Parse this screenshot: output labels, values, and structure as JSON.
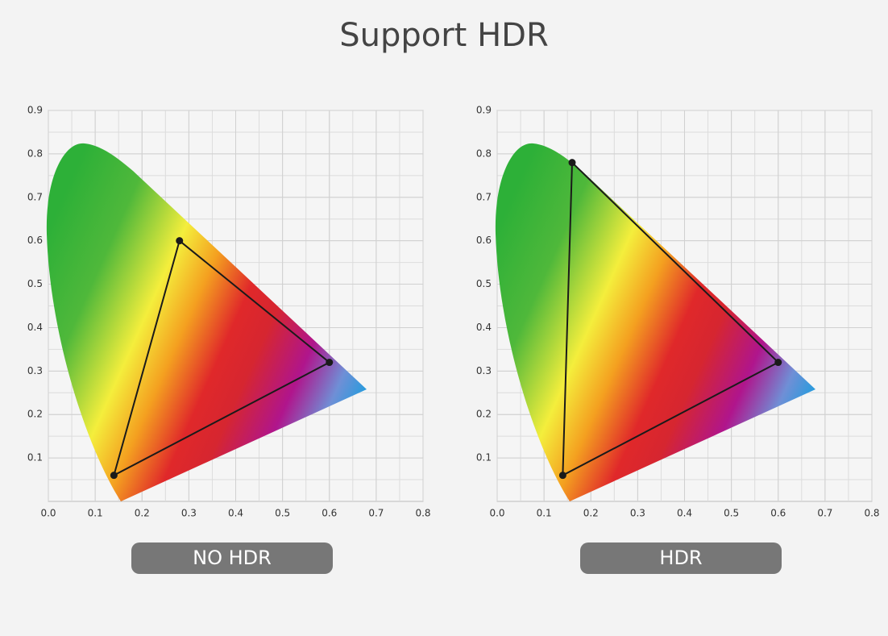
{
  "title": "Support HDR",
  "chart_data": [
    {
      "type": "polygon",
      "label": "NO HDR",
      "x": [
        0.28,
        0.6,
        0.14
      ],
      "values": [
        0.6,
        0.32,
        0.06
      ],
      "color": "#1a1a1a",
      "xlim": [
        0,
        0.8
      ],
      "ylim": [
        0,
        0.9
      ],
      "xticks": [
        {
          "value": 0,
          "label": "0.0"
        },
        0.1,
        0.2,
        0.3,
        0.4,
        0.5,
        0.6,
        0.7,
        0.8
      ],
      "yticks": [
        0.1,
        0.2,
        0.3,
        0.4,
        0.5,
        0.6,
        0.7,
        0.8,
        0.9
      ],
      "grid": true
    },
    {
      "type": "polygon",
      "label": "HDR",
      "x": [
        0.16,
        0.6,
        0.14
      ],
      "values": [
        0.78,
        0.32,
        0.06
      ],
      "color": "#1a1a1a",
      "xlim": [
        0,
        0.8
      ],
      "ylim": [
        0,
        0.9
      ],
      "xticks": [
        {
          "value": 0,
          "label": "0.0"
        },
        0.1,
        0.2,
        0.3,
        0.4,
        0.5,
        0.6,
        0.7,
        0.8
      ],
      "yticks": [
        0.1,
        0.2,
        0.3,
        0.4,
        0.5,
        0.6,
        0.7,
        0.8,
        0.9
      ],
      "grid": true
    }
  ]
}
